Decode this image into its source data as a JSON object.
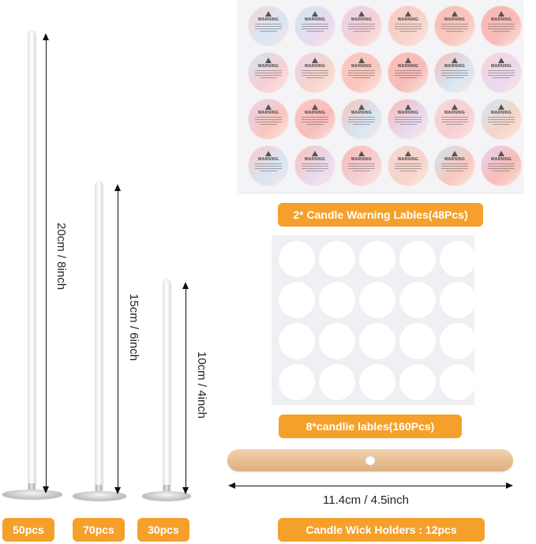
{
  "wicks": [
    {
      "count_label": "50pcs",
      "size_label": "20cm / 8inch"
    },
    {
      "count_label": "70pcs",
      "size_label": "15cm / 6inch"
    },
    {
      "count_label": "30pcs",
      "size_label": "10cm / 4inch"
    }
  ],
  "warning_labels": {
    "caption": "2* Candle Warning Lables(48Pcs)",
    "sticker_title": "WARNING",
    "rows": 4,
    "cols": 6,
    "colors": [
      "#f7d6d6",
      "#cfe8f2",
      "#e7d4f0",
      "#f9c9c6",
      "#f8c0b6",
      "#f8b9b6"
    ]
  },
  "candle_labels": {
    "caption": "8*candlie lables(160Pcs)",
    "rows": 4,
    "cols": 5
  },
  "wick_holder": {
    "size_label": "11.4cm / 4.5inch",
    "caption": "Candle Wick Holders : 12pcs"
  },
  "colors": {
    "accent_orange": "#f5a02b",
    "wood": "#e8bf93"
  }
}
